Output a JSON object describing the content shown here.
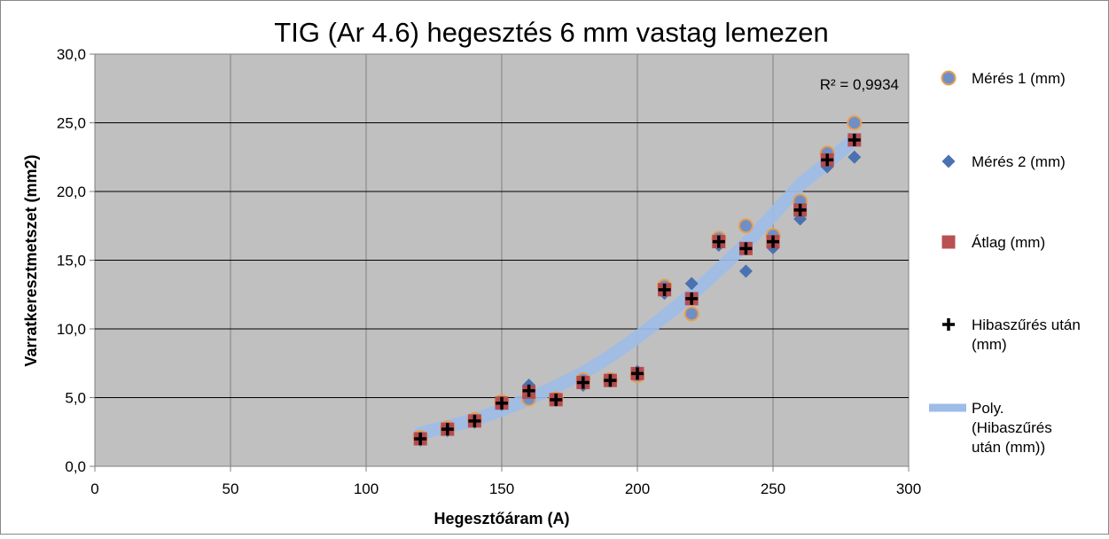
{
  "chart_data": {
    "type": "scatter",
    "title": "TIG (Ar 4.6) hegesztés 6 mm vastag lemezen",
    "xlabel": "Hegesztőáram (A)",
    "ylabel": "Varratkeresztmetszet (mm2)",
    "xlim": [
      0,
      300
    ],
    "ylim": [
      0,
      30
    ],
    "x_ticks": [
      "0",
      "50",
      "100",
      "150",
      "200",
      "250",
      "300"
    ],
    "y_ticks": [
      "0,0",
      "5,0",
      "10,0",
      "15,0",
      "20,0",
      "25,0",
      "30,0"
    ],
    "grid": true,
    "legend_position": "right",
    "annotation": "R² = 0,9934",
    "series": [
      {
        "name": "Mérés 1 (mm)",
        "marker": "circle",
        "color": "#6f8fc6",
        "points": [
          [
            120,
            2.1
          ],
          [
            130,
            2.8
          ],
          [
            140,
            3.4
          ],
          [
            150,
            4.7
          ],
          [
            160,
            4.9
          ],
          [
            170,
            4.9
          ],
          [
            180,
            6.3
          ],
          [
            190,
            6.3
          ],
          [
            200,
            6.6
          ],
          [
            210,
            13.1
          ],
          [
            220,
            11.1
          ],
          [
            230,
            16.6
          ],
          [
            240,
            17.5
          ],
          [
            250,
            16.8
          ],
          [
            260,
            19.3
          ],
          [
            270,
            22.8
          ],
          [
            280,
            25.0
          ]
        ]
      },
      {
        "name": "Mérés 2 (mm)",
        "marker": "diamond",
        "color": "#4a72b0",
        "points": [
          [
            120,
            1.9
          ],
          [
            130,
            2.6
          ],
          [
            140,
            3.2
          ],
          [
            150,
            4.5
          ],
          [
            160,
            5.9
          ],
          [
            170,
            4.8
          ],
          [
            180,
            5.9
          ],
          [
            190,
            6.2
          ],
          [
            200,
            6.9
          ],
          [
            210,
            12.6
          ],
          [
            220,
            13.3
          ],
          [
            230,
            16.1
          ],
          [
            240,
            14.2
          ],
          [
            250,
            15.9
          ],
          [
            260,
            18.0
          ],
          [
            270,
            21.8
          ],
          [
            280,
            22.5
          ]
        ]
      },
      {
        "name": "Átlag (mm)",
        "marker": "square",
        "color": "#b5484a",
        "points": [
          [
            120,
            2.0
          ],
          [
            130,
            2.7
          ],
          [
            140,
            3.3
          ],
          [
            150,
            4.6
          ],
          [
            160,
            5.4
          ],
          [
            170,
            4.85
          ],
          [
            180,
            6.1
          ],
          [
            190,
            6.25
          ],
          [
            200,
            6.75
          ],
          [
            210,
            12.85
          ],
          [
            220,
            12.2
          ],
          [
            230,
            16.35
          ],
          [
            240,
            15.85
          ],
          [
            250,
            16.35
          ],
          [
            260,
            18.65
          ],
          [
            270,
            22.3
          ],
          [
            280,
            23.75
          ]
        ]
      },
      {
        "name": "Hibaszűrés után (mm)",
        "marker": "plus",
        "color": "#000000",
        "points": [
          [
            120,
            2.0
          ],
          [
            130,
            2.7
          ],
          [
            140,
            3.3
          ],
          [
            150,
            4.6
          ],
          [
            160,
            5.5
          ],
          [
            170,
            4.85
          ],
          [
            180,
            6.1
          ],
          [
            190,
            6.25
          ],
          [
            200,
            6.75
          ],
          [
            210,
            12.85
          ],
          [
            220,
            12.2
          ],
          [
            230,
            16.35
          ],
          [
            240,
            15.85
          ],
          [
            250,
            16.35
          ],
          [
            260,
            18.65
          ],
          [
            270,
            22.3
          ],
          [
            280,
            23.75
          ]
        ]
      }
    ],
    "trendline": {
      "name": "Poly. (Hibaszűrés után (mm))",
      "color": "#9dbde8",
      "x": [
        120,
        130,
        140,
        150,
        160,
        170,
        180,
        190,
        200,
        210,
        220,
        230,
        240,
        250,
        260,
        270,
        280
      ],
      "y": [
        2.4,
        2.9,
        3.4,
        4.1,
        4.9,
        5.8,
        6.8,
        8.0,
        9.4,
        10.9,
        12.5,
        14.3,
        16.2,
        18.3,
        20.5,
        22.1,
        23.8
      ]
    }
  }
}
